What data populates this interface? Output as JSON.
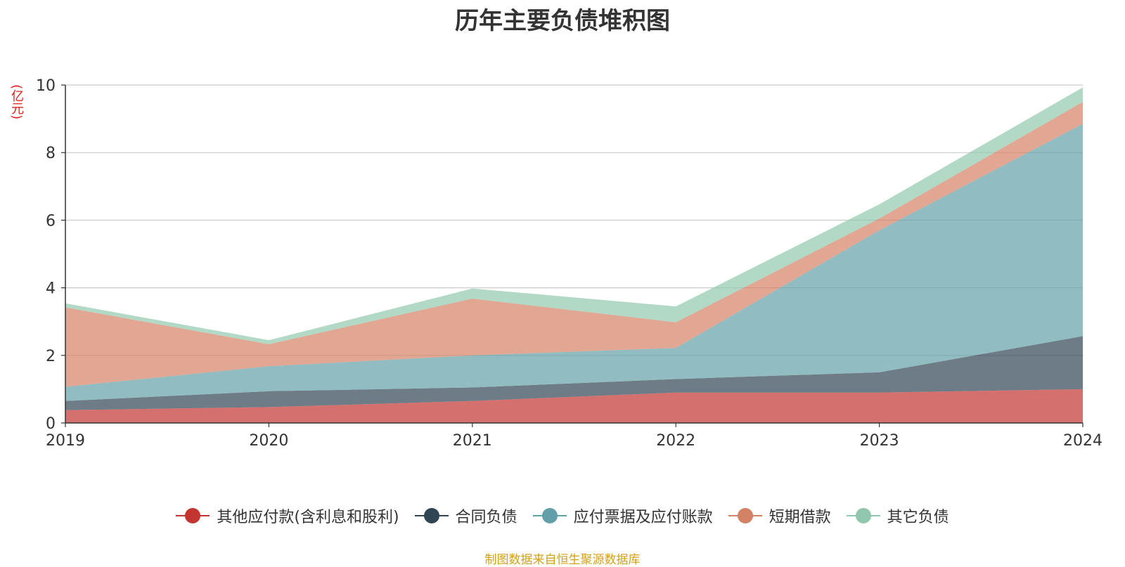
{
  "chart_data": {
    "type": "area",
    "stacked": true,
    "title": "历年主要负债堆积图",
    "ylabel": "(亿元)",
    "xlabel": "",
    "x": [
      "2019",
      "2020",
      "2021",
      "2022",
      "2023",
      "2024"
    ],
    "ylim": [
      0,
      10
    ],
    "yticks": [
      "0",
      "2",
      "4",
      "6",
      "8",
      "10"
    ],
    "grid": true,
    "legend_position": "bottom",
    "series": [
      {
        "name": "其他应付款(含利息和股利)",
        "color": "#c23531",
        "values": [
          0.38,
          0.47,
          0.65,
          0.9,
          0.9,
          1.0
        ]
      },
      {
        "name": "合同负债",
        "color": "#2f4554",
        "values": [
          0.27,
          0.47,
          0.4,
          0.4,
          0.6,
          1.57
        ]
      },
      {
        "name": "应付票据及应付账款",
        "color": "#61a0a8",
        "values": [
          0.42,
          0.74,
          0.95,
          0.92,
          4.2,
          6.28
        ]
      },
      {
        "name": "短期借款",
        "color": "#d48265",
        "values": [
          2.35,
          0.65,
          1.68,
          0.76,
          0.35,
          0.65
        ]
      },
      {
        "name": "其它负债",
        "color": "#91c7ae",
        "values": [
          0.12,
          0.12,
          0.3,
          0.47,
          0.42,
          0.43
        ]
      }
    ]
  },
  "footer": {
    "source": "制图数据来自恒生聚源数据库"
  }
}
